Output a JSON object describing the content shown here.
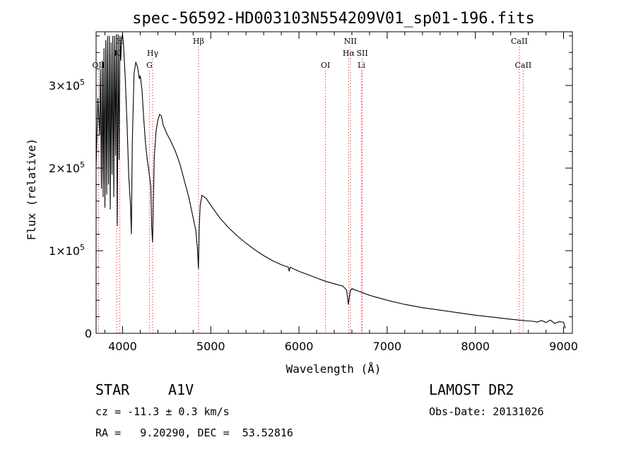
{
  "chart_data": {
    "type": "line",
    "title": "spec-56592-HD003103N554209V01_sp01-196.fits",
    "xlabel": "Wavelength (Å)",
    "ylabel": "Flux (relative)",
    "xlim": [
      3700,
      9100
    ],
    "ylim": [
      0,
      365000
    ],
    "xticks": [
      {
        "value": 4000,
        "label": "4000"
      },
      {
        "value": 5000,
        "label": "5000"
      },
      {
        "value": 6000,
        "label": "6000"
      },
      {
        "value": 7000,
        "label": "7000"
      },
      {
        "value": 8000,
        "label": "8000"
      },
      {
        "value": 9000,
        "label": "9000"
      }
    ],
    "yticks": [
      {
        "value": 0,
        "label": "0",
        "exp": ""
      },
      {
        "value": 100000,
        "label": "1×10",
        "exp": "5"
      },
      {
        "value": 200000,
        "label": "2×10",
        "exp": "5"
      },
      {
        "value": 300000,
        "label": "3×10",
        "exp": "5"
      }
    ],
    "grid": false,
    "series": [
      {
        "x": [
          3700,
          3720,
          3740,
          3750,
          3760,
          3770,
          3780,
          3790,
          3800,
          3810,
          3820,
          3830,
          3840,
          3850,
          3860,
          3870,
          3880,
          3890,
          3900,
          3910,
          3920,
          3930,
          3940,
          3950,
          3960,
          3970,
          3980,
          3990,
          4000,
          4010,
          4030,
          4050,
          4070,
          4090,
          4100,
          4110,
          4130,
          4150,
          4170,
          4190,
          4200,
          4220,
          4240,
          4260,
          4280,
          4300,
          4320,
          4330,
          4340,
          4350,
          4360,
          4380,
          4400,
          4420,
          4440,
          4460,
          4480,
          4500,
          4550,
          4600,
          4650,
          4700,
          4750,
          4800,
          4830,
          4850,
          4860,
          4870,
          4880,
          4900,
          4950,
          5000,
          5100,
          5200,
          5300,
          5400,
          5500,
          5600,
          5700,
          5800,
          5880,
          5890,
          5900,
          6000,
          6100,
          6200,
          6300,
          6400,
          6500,
          6540,
          6560,
          6580,
          6600,
          6700,
          6800,
          6900,
          7000,
          7200,
          7400,
          7600,
          7800,
          8000,
          8200,
          8400,
          8500,
          8550,
          8600,
          8660,
          8700,
          8750,
          8800,
          8850,
          8900,
          8950,
          9000,
          9020
        ],
        "y": [
          200000,
          285000,
          240000,
          320000,
          175000,
          330000,
          165000,
          345000,
          152000,
          355000,
          168000,
          360000,
          180000,
          360000,
          150000,
          352000,
          192000,
          360000,
          165000,
          360000,
          215000,
          362000,
          130000,
          362000,
          210000,
          360000,
          330000,
          358000,
          362000,
          350000,
          310000,
          255000,
          190000,
          155000,
          120000,
          230000,
          315000,
          328000,
          322000,
          308000,
          312000,
          295000,
          260000,
          230000,
          210000,
          195000,
          178000,
          130000,
          110000,
          165000,
          215000,
          245000,
          258000,
          265000,
          263000,
          252000,
          247000,
          242000,
          232000,
          220000,
          205000,
          185000,
          165000,
          140000,
          125000,
          102000,
          78000,
          130000,
          155000,
          167000,
          163000,
          155000,
          140000,
          128000,
          118000,
          109000,
          101000,
          94000,
          88000,
          83000,
          80000,
          75000,
          80000,
          75000,
          71000,
          67000,
          63000,
          60000,
          57000,
          52000,
          35000,
          51000,
          54000,
          50000,
          46000,
          43000,
          40000,
          35000,
          31000,
          28000,
          25000,
          22000,
          19500,
          17000,
          16000,
          15500,
          15000,
          14500,
          13500,
          15500,
          13000,
          16000,
          12000,
          14000,
          13500,
          6000
        ]
      }
    ],
    "spectral_lines": [
      {
        "wavelength": 3727,
        "label": "OII",
        "row": 2
      },
      {
        "wavelength": 3934,
        "label": "K",
        "row": 1
      },
      {
        "wavelength": 3969,
        "label": "H",
        "row": 0
      },
      {
        "wavelength": 4304,
        "label": "G",
        "row": 2
      },
      {
        "wavelength": 4341,
        "label": "Hγ",
        "row": 1
      },
      {
        "wavelength": 4861,
        "label": "Hβ",
        "row": 0
      },
      {
        "wavelength": 6300,
        "label": "OI",
        "row": 2
      },
      {
        "wavelength": 6563,
        "label": "Hα",
        "row": 1
      },
      {
        "wavelength": 6583,
        "label": "NII",
        "row": 0
      },
      {
        "wavelength": 6708,
        "label": "Li",
        "row": 2
      },
      {
        "wavelength": 6717,
        "label": "SII",
        "row": 1
      },
      {
        "wavelength": 8498,
        "label": "CaII",
        "row": 0
      },
      {
        "wavelength": 8542,
        "label": "CaII",
        "row": 2
      }
    ]
  },
  "info": {
    "object_type": "STAR",
    "spectral_class": "A1V",
    "survey": "LAMOST DR2",
    "redshift": "cz = -11.3 ± 0.3 km/s",
    "obs_date": "Obs-Date: 20131026",
    "coords": "RA =   9.20290, DEC =  53.52816"
  },
  "colors": {
    "line_marker": "#ff0000",
    "spectrum": "#000000"
  }
}
